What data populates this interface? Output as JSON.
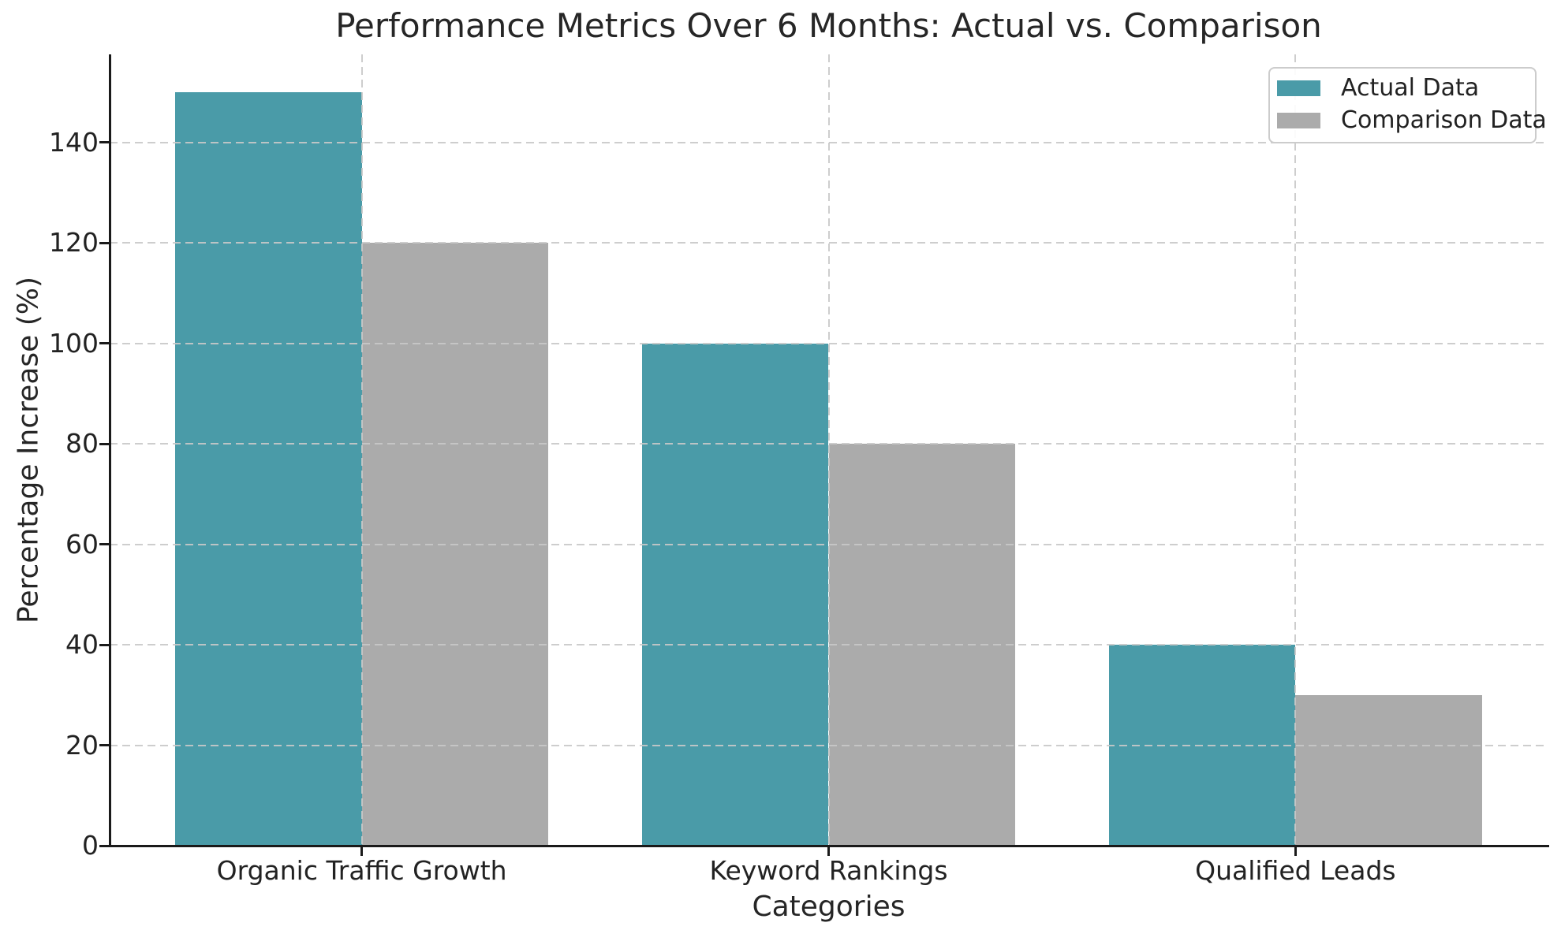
{
  "chart_data": {
    "type": "bar",
    "title": "Performance Metrics Over 6 Months: Actual vs. Comparison",
    "xlabel": "Categories",
    "ylabel": "Percentage Increase (%)",
    "categories": [
      "Organic Traffic Growth",
      "Keyword Rankings",
      "Qualified Leads"
    ],
    "series": [
      {
        "name": "Actual Data",
        "color": "#4a9ba8",
        "values": [
          150,
          100,
          40
        ]
      },
      {
        "name": "Comparison Data",
        "color": "#ababab",
        "values": [
          120,
          80,
          30
        ]
      }
    ],
    "yticks": [
      0,
      20,
      40,
      60,
      80,
      100,
      120,
      140
    ],
    "ylim": [
      0,
      157.5
    ],
    "xlim": [
      -0.54,
      2.54
    ],
    "bar_width": 0.4,
    "grid": true,
    "grid_style": "dashed",
    "legend_position": "top-right",
    "colors": {
      "accent_teal": "#4a9ba8",
      "comparison_gray": "#ababab",
      "spine": "#1a1a1a",
      "grid": "#c8c8c8",
      "text": "#262626"
    }
  }
}
